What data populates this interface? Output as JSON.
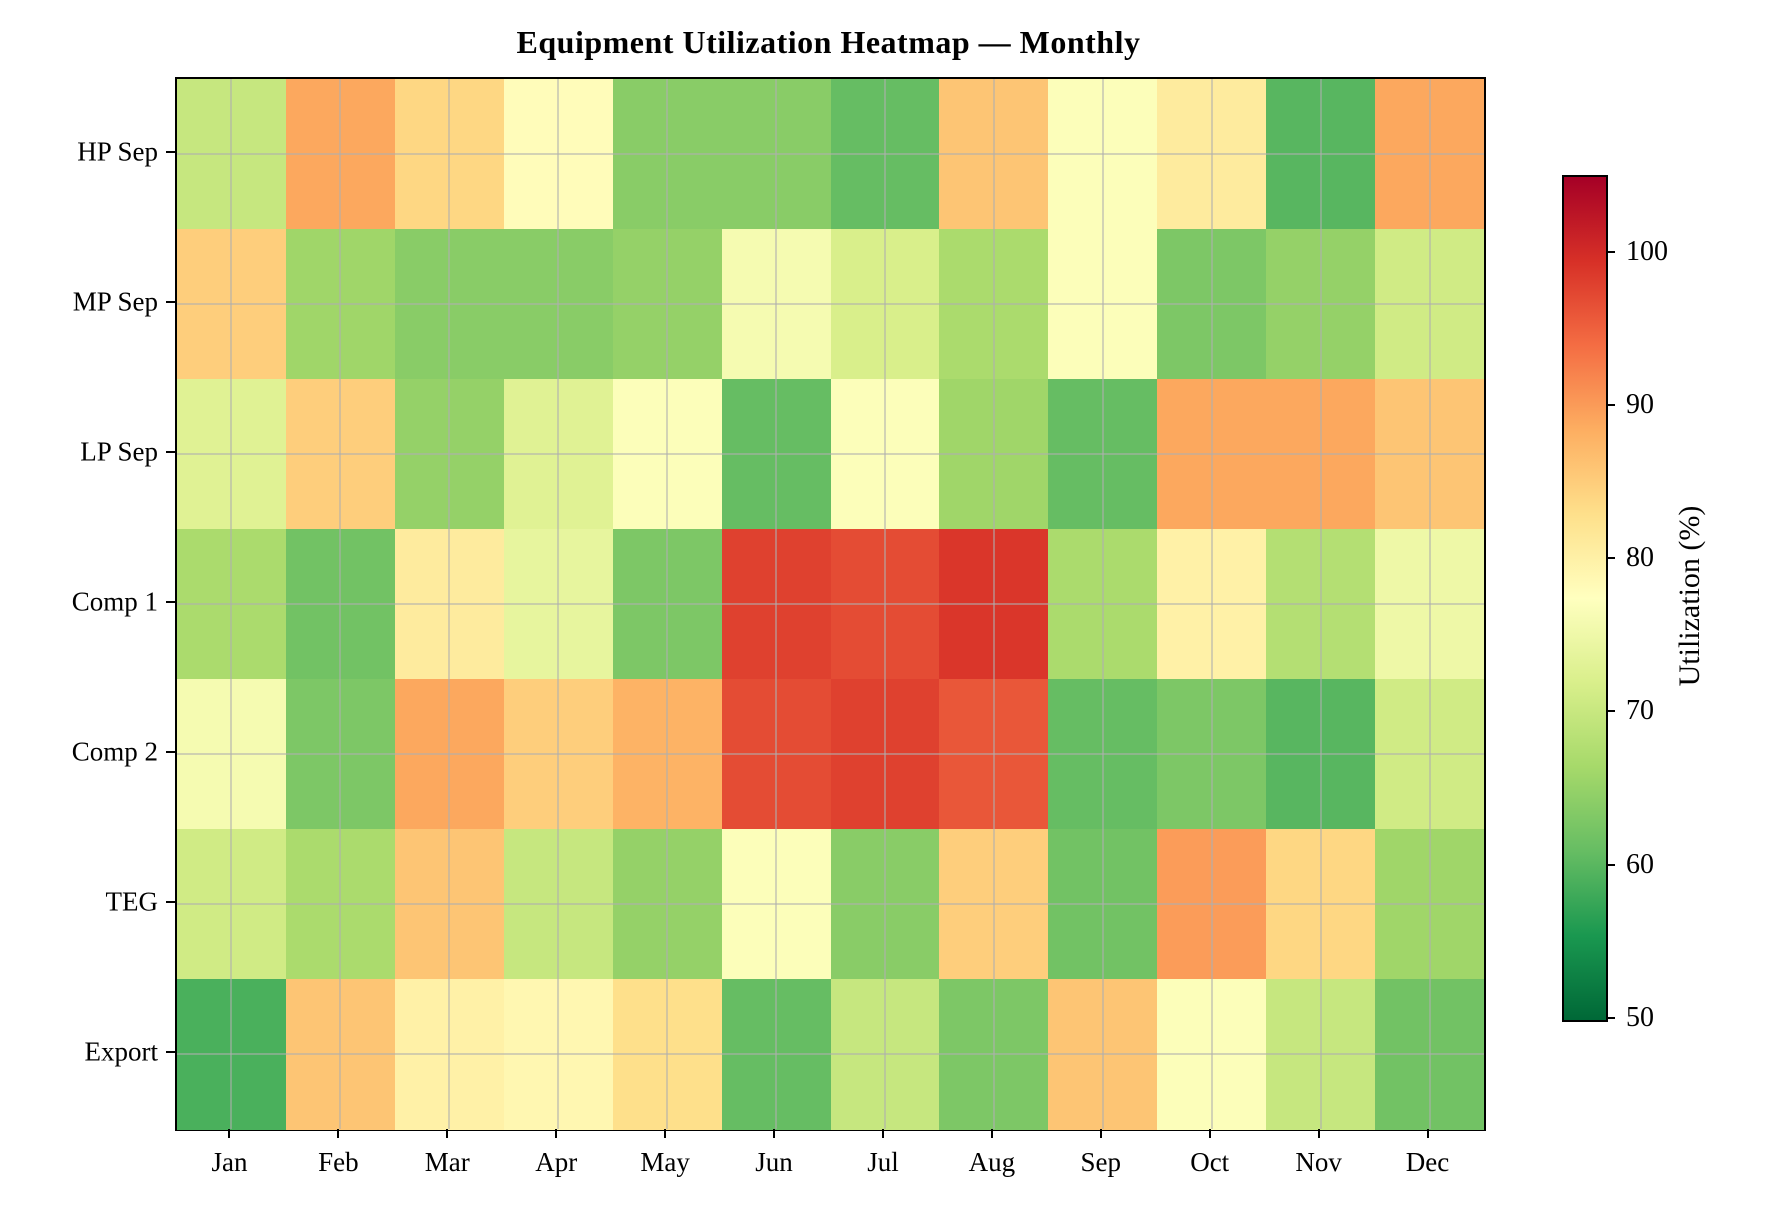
{
  "title": "Equipment Utilization Heatmap — Monthly",
  "chart_data": {
    "type": "heatmap",
    "x_labels": [
      "Jan",
      "Feb",
      "Mar",
      "Apr",
      "May",
      "Jun",
      "Jul",
      "Aug",
      "Sep",
      "Oct",
      "Nov",
      "Dec"
    ],
    "y_labels": [
      "HP Sep",
      "MP Sep",
      "LP Sep",
      "Comp 1",
      "Comp 2",
      "TEG",
      "Export"
    ],
    "values": [
      [
        70,
        89,
        84,
        78,
        64,
        64,
        61,
        86,
        77,
        81,
        60,
        89
      ],
      [
        85,
        66,
        64,
        64,
        65,
        76,
        72,
        67,
        77,
        63,
        65,
        71
      ],
      [
        73,
        85,
        65,
        73,
        77,
        61,
        77,
        66,
        61,
        89,
        89,
        86
      ],
      [
        67,
        62,
        81,
        74,
        63,
        98,
        97,
        99,
        67,
        80,
        68,
        75
      ],
      [
        76,
        63,
        89,
        85,
        88,
        97,
        98,
        96,
        61,
        63,
        60,
        71
      ],
      [
        71,
        67,
        86,
        70,
        65,
        77,
        64,
        85,
        62,
        90,
        84,
        66
      ],
      [
        59,
        86,
        80,
        79,
        83,
        61,
        70,
        63,
        86,
        77,
        70,
        62
      ]
    ],
    "vmin": 50,
    "vmax": 105,
    "grid": true,
    "colorbar": {
      "label": "Utilization (%)",
      "ticks": [
        50,
        60,
        70,
        80,
        90,
        100
      ]
    },
    "colormap": {
      "name": "RdYlGn_r",
      "stops": [
        {
          "f": 0.0,
          "color": "#006837"
        },
        {
          "f": 0.1,
          "color": "#1a9850"
        },
        {
          "f": 0.2,
          "color": "#66bd63"
        },
        {
          "f": 0.3,
          "color": "#a6d96a"
        },
        {
          "f": 0.4,
          "color": "#d9ef8b"
        },
        {
          "f": 0.5,
          "color": "#ffffbf"
        },
        {
          "f": 0.6,
          "color": "#fee08b"
        },
        {
          "f": 0.7,
          "color": "#fdae61"
        },
        {
          "f": 0.8,
          "color": "#f46d43"
        },
        {
          "f": 0.9,
          "color": "#d73027"
        },
        {
          "f": 1.0,
          "color": "#a50026"
        }
      ]
    }
  }
}
